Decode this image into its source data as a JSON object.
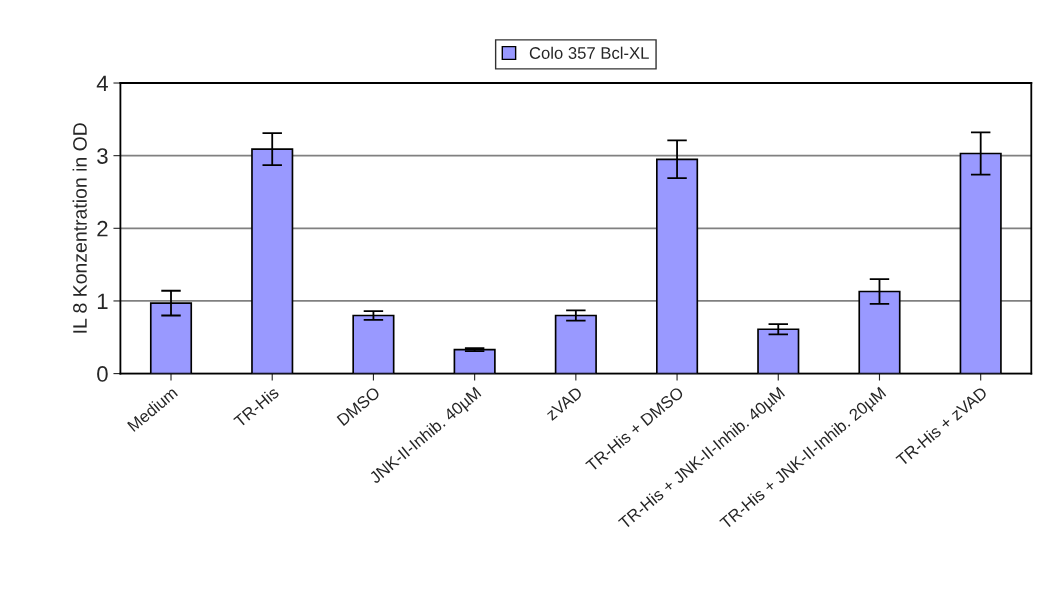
{
  "chart_data": {
    "type": "bar",
    "ylabel": "IL 8 Konzentration in OD",
    "categories": [
      "Medium",
      "TR-His",
      "DMSO",
      "JNK-II-Inhib. 40µM",
      "zVAD",
      "TR-His + DMSO",
      "TR-His + JNK-II-Inhib. 40µM",
      "TR-His + JNK-II-Inhib. 20µM",
      "TR-His + zVAD"
    ],
    "series": [
      {
        "name": "Colo 357 Bcl-XL",
        "color": "#9999ff",
        "values": [
          0.97,
          3.09,
          0.8,
          0.33,
          0.8,
          2.95,
          0.61,
          1.13,
          3.03
        ],
        "errors": [
          0.17,
          0.22,
          0.06,
          0.02,
          0.07,
          0.26,
          0.07,
          0.17,
          0.29
        ]
      }
    ],
    "ylim": [
      0,
      4
    ],
    "yticks": [
      0,
      1,
      2,
      3,
      4
    ],
    "grid": "y",
    "legend": "top"
  }
}
